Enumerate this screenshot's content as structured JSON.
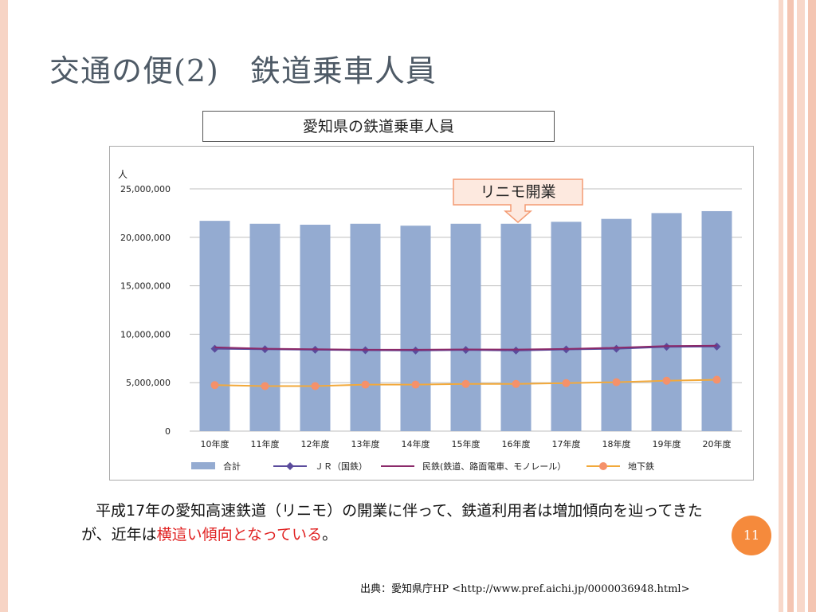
{
  "slide": {
    "title": "交通の便(2)　鉄道乗車人員",
    "page_number": "11",
    "caption_main": "平成17年の愛知高速鉄道（リニモ）の開業に伴って、鉄道利用者は増加傾向を辿ってきたが、近年は",
    "caption_highlight": "横這い傾向となっている",
    "caption_end": "。",
    "source": "出典：愛知県庁HP <http://www.pref.aichi.jp/0000036948.html>",
    "callout": "リニモ開業"
  },
  "colors": {
    "bar": "#94abd1",
    "jr": "#5a4b9c",
    "private": "#8b2a6a",
    "subway_line": "#f2a93b",
    "subway_marker": "#f5916a",
    "grid": "#bfbfbf",
    "callout_fill": "#fde9df",
    "callout_border": "#f39b73"
  },
  "chart_data": {
    "type": "bar",
    "title": "愛知県の鉄道乗車人員",
    "ylabel": "人",
    "ylim": [
      0,
      25000000
    ],
    "yticks": [
      0,
      5000000,
      10000000,
      15000000,
      20000000,
      25000000
    ],
    "ytick_labels": [
      "0",
      "5,000,000",
      "10,000,000",
      "15,000,000",
      "20,000,000",
      "25,000,000"
    ],
    "grid": true,
    "legend_position": "bottom",
    "categories": [
      "10年度",
      "11年度",
      "12年度",
      "13年度",
      "14年度",
      "15年度",
      "16年度",
      "17年度",
      "18年度",
      "19年度",
      "20年度"
    ],
    "series": [
      {
        "name": "合計",
        "kind": "bar",
        "values": [
          21700000,
          21400000,
          21300000,
          21400000,
          21200000,
          21400000,
          21400000,
          21600000,
          21900000,
          22500000,
          22700000
        ]
      },
      {
        "name": "ＪＲ（国鉄）",
        "kind": "line",
        "marker": "diamond",
        "values": [
          8500000,
          8450000,
          8400000,
          8350000,
          8320000,
          8380000,
          8320000,
          8430000,
          8500000,
          8700000,
          8730000
        ]
      },
      {
        "name": "民鉄(鉄道、路面電車、モノレール）",
        "kind": "line",
        "marker": "none",
        "values": [
          8650000,
          8500000,
          8450000,
          8400000,
          8400000,
          8430000,
          8420000,
          8480000,
          8600000,
          8780000,
          8820000
        ]
      },
      {
        "name": "地下鉄",
        "kind": "line",
        "marker": "circle",
        "values": [
          4750000,
          4650000,
          4650000,
          4800000,
          4800000,
          4870000,
          4870000,
          4950000,
          5050000,
          5200000,
          5300000
        ]
      }
    ]
  }
}
